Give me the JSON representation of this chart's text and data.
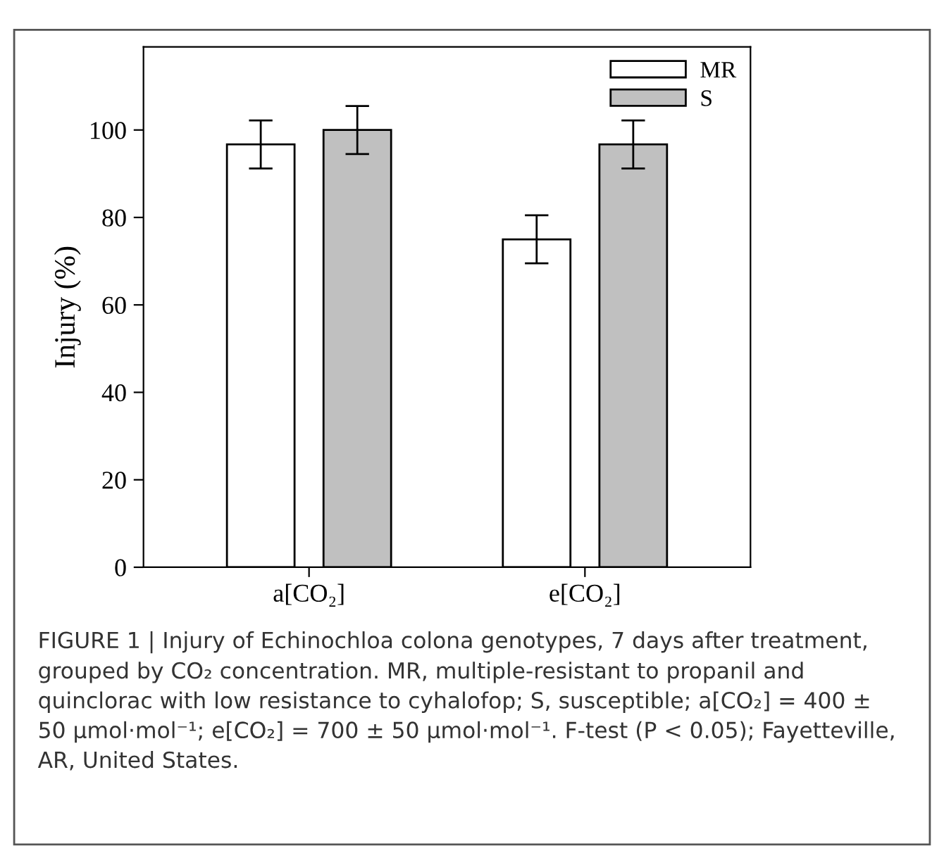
{
  "chart_data": {
    "type": "bar",
    "ylabel": "Injury (%)",
    "categories": [
      "a[CO₂]",
      "e[CO₂]"
    ],
    "series": [
      {
        "name": "MR",
        "color": "#ffffff",
        "values": [
          96.7,
          75
        ],
        "errors": [
          5.5,
          5.5
        ]
      },
      {
        "name": "S",
        "color": "#c0c0c0",
        "values": [
          100,
          96.7
        ],
        "errors": [
          5.5,
          5.5
        ]
      }
    ],
    "ylim": [
      0,
      119
    ],
    "yticks": [
      0,
      20,
      40,
      60,
      80,
      100
    ],
    "grid": false,
    "legend": "top right",
    "annotations": [
      "FIGURE 1 | Injury of Echinochloa colona genotypes, 7 days after treatment, grouped by CO₂ concentration. MR, multiple-resistant to propanil and quinclorac with low resistance to cyhalofop; S, susceptible; a[CO₂] = 400 ± 50 µmol·mol⁻¹; e[CO₂] = 700 ± 50 µmol·mol⁻¹. F-test (P < 0.05); Fayetteville, AR, United States."
    ]
  }
}
